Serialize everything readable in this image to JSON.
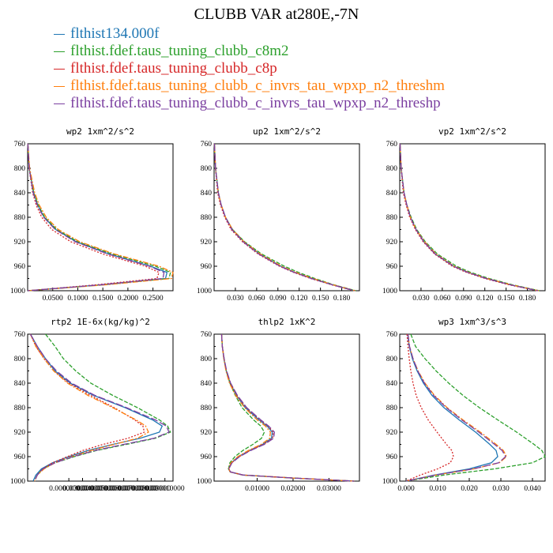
{
  "title": "CLUBB VAR at280E,-7N",
  "legend": [
    {
      "label": "flthist134.000f",
      "color": "#1f77b4"
    },
    {
      "label": "flthist.fdef.taus_tuning_clubb_c8m2",
      "color": "#2ca02c"
    },
    {
      "label": "flthist.fdef.taus_tuning_clubb_c8p",
      "color": "#d62728"
    },
    {
      "label": "flthist.fdef.taus_tuning_clubb_c_invrs_tau_wpxp_n2_threshm",
      "color": "#ff7f0e"
    },
    {
      "label": "flthist.fdef.taus_tuning_clubb_c_invrs_tau_wpxp_n2_threshp",
      "color": "#7b3fa0"
    }
  ],
  "chart_data": [
    {
      "type": "line",
      "title": "wp2  1xm^2/s^2",
      "xlim": [
        0,
        0.29
      ],
      "ylim": [
        760,
        1000
      ],
      "xticks": [
        "0.0500",
        "0.1000",
        "0.1500",
        "0.2000",
        "0.2500"
      ],
      "xtick_values": [
        0.05,
        0.1,
        0.15,
        0.2,
        0.25
      ],
      "yticks": [
        760,
        800,
        840,
        880,
        920,
        960,
        1000
      ],
      "y": [
        760,
        800,
        840,
        860,
        880,
        900,
        920,
        940,
        960,
        970,
        980,
        990,
        1000
      ],
      "series": [
        {
          "values": [
            0.0005,
            0.003,
            0.012,
            0.02,
            0.033,
            0.056,
            0.097,
            0.162,
            0.245,
            0.278,
            0.275,
            0.15,
            0.0
          ]
        },
        {
          "values": [
            0.0005,
            0.003,
            0.012,
            0.021,
            0.034,
            0.058,
            0.1,
            0.168,
            0.255,
            0.285,
            0.282,
            0.155,
            0.0
          ]
        },
        {
          "values": [
            0.0005,
            0.003,
            0.01,
            0.017,
            0.028,
            0.048,
            0.086,
            0.15,
            0.235,
            0.262,
            0.258,
            0.14,
            0.0
          ]
        },
        {
          "values": [
            0.0005,
            0.004,
            0.014,
            0.023,
            0.037,
            0.061,
            0.104,
            0.173,
            0.262,
            0.29,
            0.287,
            0.16,
            0.0
          ]
        },
        {
          "values": [
            0.0005,
            0.003,
            0.011,
            0.019,
            0.032,
            0.055,
            0.095,
            0.16,
            0.243,
            0.272,
            0.27,
            0.15,
            0.0
          ]
        }
      ]
    },
    {
      "type": "line",
      "title": "up2  1xm^2/s^2",
      "xlim": [
        0,
        0.205
      ],
      "ylim": [
        760,
        1000
      ],
      "xticks": [
        "0.030",
        "0.060",
        "0.090",
        "0.120",
        "0.150",
        "0.180"
      ],
      "xtick_values": [
        0.03,
        0.06,
        0.09,
        0.12,
        0.15,
        0.18
      ],
      "yticks": [
        760,
        800,
        840,
        880,
        920,
        960,
        1000
      ],
      "y": [
        760,
        800,
        840,
        860,
        880,
        900,
        920,
        940,
        960,
        970,
        980,
        990,
        1000
      ],
      "series": [
        {
          "values": [
            0.0005,
            0.002,
            0.006,
            0.01,
            0.016,
            0.026,
            0.042,
            0.064,
            0.094,
            0.114,
            0.138,
            0.166,
            0.198
          ]
        },
        {
          "values": [
            0.0005,
            0.002,
            0.006,
            0.01,
            0.016,
            0.026,
            0.043,
            0.067,
            0.099,
            0.119,
            0.142,
            0.168,
            0.2
          ]
        },
        {
          "values": [
            0.0005,
            0.002,
            0.005,
            0.009,
            0.015,
            0.024,
            0.04,
            0.062,
            0.092,
            0.112,
            0.136,
            0.165,
            0.197
          ]
        },
        {
          "values": [
            0.0005,
            0.002,
            0.006,
            0.01,
            0.016,
            0.026,
            0.042,
            0.065,
            0.095,
            0.115,
            0.139,
            0.167,
            0.199
          ]
        },
        {
          "values": [
            0.0005,
            0.002,
            0.006,
            0.01,
            0.016,
            0.025,
            0.041,
            0.063,
            0.093,
            0.113,
            0.137,
            0.166,
            0.198
          ]
        }
      ]
    },
    {
      "type": "line",
      "title": "vp2  1xm^2/s^2",
      "xlim": [
        0,
        0.205
      ],
      "ylim": [
        760,
        1000
      ],
      "xticks": [
        "0.030",
        "0.060",
        "0.090",
        "0.120",
        "0.150",
        "0.180"
      ],
      "xtick_values": [
        0.03,
        0.06,
        0.09,
        0.12,
        0.15,
        0.18
      ],
      "yticks": [
        760,
        800,
        840,
        880,
        920,
        960,
        1000
      ],
      "y": [
        760,
        800,
        840,
        860,
        880,
        900,
        920,
        940,
        960,
        970,
        980,
        990,
        1000
      ],
      "series": [
        {
          "values": [
            0.0005,
            0.002,
            0.006,
            0.01,
            0.015,
            0.023,
            0.034,
            0.05,
            0.076,
            0.096,
            0.122,
            0.155,
            0.195
          ]
        },
        {
          "values": [
            0.0005,
            0.002,
            0.006,
            0.01,
            0.016,
            0.024,
            0.036,
            0.053,
            0.08,
            0.1,
            0.126,
            0.158,
            0.197
          ]
        },
        {
          "values": [
            0.0005,
            0.002,
            0.005,
            0.009,
            0.014,
            0.022,
            0.033,
            0.049,
            0.074,
            0.094,
            0.12,
            0.153,
            0.194
          ]
        },
        {
          "values": [
            0.0005,
            0.002,
            0.006,
            0.01,
            0.015,
            0.023,
            0.035,
            0.051,
            0.077,
            0.097,
            0.123,
            0.156,
            0.196
          ]
        },
        {
          "values": [
            0.0005,
            0.002,
            0.006,
            0.01,
            0.015,
            0.023,
            0.034,
            0.05,
            0.076,
            0.096,
            0.122,
            0.155,
            0.195
          ]
        }
      ]
    },
    {
      "type": "line",
      "title": "rtp2  1E-6x(kg/kg)^2",
      "xlim": [
        0.0,
        1.059e-05
      ],
      "ylim": [
        760,
        1000
      ],
      "xticks": [
        "0.000003000",
        "0.000004000",
        "0.000005000",
        "0.000006000",
        "0.000007000",
        "0.000008000",
        "0.000009000",
        "0.000010000"
      ],
      "xtick_values": [
        3e-06,
        4e-06,
        5e-06,
        6e-06,
        7e-06,
        8e-06,
        9e-06,
        1e-05
      ],
      "yticks": [
        760,
        800,
        840,
        880,
        920,
        960,
        1000
      ],
      "y": [
        760,
        780,
        800,
        820,
        840,
        860,
        880,
        900,
        910,
        920,
        930,
        940,
        950,
        960,
        970,
        980,
        990,
        1000
      ],
      "series": [
        {
          "values": [
            2e-07,
            7e-07,
            1.3e-06,
            2e-06,
            3.1e-06,
            4.8e-06,
            7.1e-06,
            9.1e-06,
            9.8e-06,
            9.6e-06,
            8.2e-06,
            6.2e-06,
            4.4e-06,
            3e-06,
            1.8e-06,
            1e-06,
            6e-07,
            4e-07
          ]
        },
        {
          "values": [
            1.3e-06,
            2e-06,
            2.6e-06,
            3.5e-06,
            4.6e-06,
            6.2e-06,
            8e-06,
            9.6e-06,
            1.02e-05,
            1.04e-05,
            9.3e-06,
            7.2e-06,
            5e-06,
            3.4e-06,
            2e-06,
            1.1e-06,
            7e-07,
            5e-07
          ]
        },
        {
          "values": [
            2e-07,
            6e-07,
            1.2e-06,
            1.9e-06,
            3e-06,
            4.6e-06,
            6.3e-06,
            7.8e-06,
            8.4e-06,
            8.5e-06,
            7.3e-06,
            5.5e-06,
            4e-06,
            2.9e-06,
            1.8e-06,
            1.1e-06,
            7e-07,
            5e-07
          ]
        },
        {
          "values": [
            2e-07,
            6e-07,
            1.2e-06,
            1.9e-06,
            2.9e-06,
            4.4e-06,
            6.2e-06,
            7.9e-06,
            8.6e-06,
            8.8e-06,
            8e-06,
            6.3e-06,
            4.6e-06,
            3.2e-06,
            2e-06,
            1.2e-06,
            7e-07,
            5e-07
          ]
        },
        {
          "values": [
            2e-07,
            7e-07,
            1.3e-06,
            2.1e-06,
            3.2e-06,
            4.9e-06,
            7.2e-06,
            9.3e-06,
            1.01e-05,
            1.03e-05,
            9.2e-06,
            7e-06,
            4.9e-06,
            3.3e-06,
            2e-06,
            1.1e-06,
            7e-07,
            5e-07
          ]
        }
      ]
    },
    {
      "type": "line",
      "title": "thlp2  1xK^2",
      "xlim": [
        -0.002,
        0.0385
      ],
      "ylim": [
        760,
        1000
      ],
      "xticks": [
        "0.01000",
        "0.02000",
        "0.03000"
      ],
      "xtick_values": [
        0.01,
        0.02,
        0.03
      ],
      "yticks": [
        760,
        800,
        840,
        880,
        920,
        960,
        1000
      ],
      "y": [
        760,
        780,
        800,
        820,
        840,
        860,
        880,
        900,
        910,
        920,
        930,
        940,
        950,
        960,
        970,
        980,
        985,
        990,
        995,
        1000
      ],
      "series": [
        {
          "values": [
            0.0001,
            0.0003,
            0.0007,
            0.0014,
            0.0025,
            0.0042,
            0.0067,
            0.0105,
            0.0128,
            0.0142,
            0.014,
            0.0115,
            0.0078,
            0.0048,
            0.0028,
            0.002,
            0.0025,
            0.006,
            0.02,
            0.037
          ]
        },
        {
          "values": [
            0.0001,
            0.0003,
            0.0008,
            0.0014,
            0.0024,
            0.0039,
            0.0058,
            0.009,
            0.011,
            0.012,
            0.0112,
            0.0088,
            0.006,
            0.0038,
            0.0024,
            0.002,
            0.0025,
            0.006,
            0.02,
            0.037
          ]
        },
        {
          "values": [
            0.0001,
            0.0003,
            0.0008,
            0.0014,
            0.0026,
            0.0044,
            0.007,
            0.0108,
            0.013,
            0.0145,
            0.0143,
            0.0118,
            0.008,
            0.005,
            0.0029,
            0.0021,
            0.0026,
            0.0061,
            0.02,
            0.037
          ]
        },
        {
          "values": [
            0.0001,
            0.0003,
            0.0007,
            0.0013,
            0.0023,
            0.004,
            0.0065,
            0.01,
            0.0123,
            0.0137,
            0.0135,
            0.0111,
            0.0075,
            0.0046,
            0.0027,
            0.002,
            0.0025,
            0.006,
            0.02,
            0.037
          ]
        },
        {
          "values": [
            0.0001,
            0.0003,
            0.0008,
            0.0015,
            0.0026,
            0.0045,
            0.0071,
            0.011,
            0.0132,
            0.0148,
            0.0146,
            0.012,
            0.0082,
            0.0051,
            0.003,
            0.0021,
            0.0026,
            0.0061,
            0.02,
            0.037
          ]
        }
      ]
    },
    {
      "type": "line",
      "title": "wp3  1xm^3/s^3",
      "xlim": [
        -0.002,
        0.044
      ],
      "ylim": [
        760,
        1000
      ],
      "xticks": [
        "0.000",
        "0.010",
        "0.020",
        "0.030",
        "0.040"
      ],
      "xtick_values": [
        0.0,
        0.01,
        0.02,
        0.03,
        0.04
      ],
      "yticks": [
        760,
        800,
        840,
        880,
        920,
        960,
        1000
      ],
      "y": [
        760,
        780,
        800,
        820,
        840,
        860,
        880,
        900,
        920,
        940,
        950,
        960,
        970,
        980,
        990,
        1000
      ],
      "series": [
        {
          "values": [
            0.0005,
            0.001,
            0.002,
            0.0035,
            0.0055,
            0.0082,
            0.012,
            0.0168,
            0.022,
            0.0265,
            0.0285,
            0.029,
            0.027,
            0.02,
            0.009,
            0.0
          ]
        },
        {
          "values": [
            0.0015,
            0.003,
            0.006,
            0.0095,
            0.0135,
            0.018,
            0.0232,
            0.029,
            0.035,
            0.0405,
            0.043,
            0.044,
            0.04,
            0.028,
            0.012,
            0.0
          ]
        },
        {
          "values": [
            0.0003,
            0.0006,
            0.001,
            0.0015,
            0.0022,
            0.0032,
            0.0048,
            0.007,
            0.0098,
            0.0128,
            0.0145,
            0.015,
            0.014,
            0.01,
            0.0045,
            0.0
          ]
        },
        {
          "values": [
            0.0006,
            0.0011,
            0.0022,
            0.0038,
            0.006,
            0.009,
            0.013,
            0.018,
            0.0235,
            0.0285,
            0.0308,
            0.0318,
            0.0295,
            0.0215,
            0.0095,
            0.0
          ]
        },
        {
          "values": [
            0.0006,
            0.0011,
            0.0022,
            0.0037,
            0.0058,
            0.0087,
            0.0127,
            0.0176,
            0.023,
            0.028,
            0.0304,
            0.0315,
            0.0293,
            0.0213,
            0.0094,
            0.0
          ]
        }
      ]
    }
  ]
}
